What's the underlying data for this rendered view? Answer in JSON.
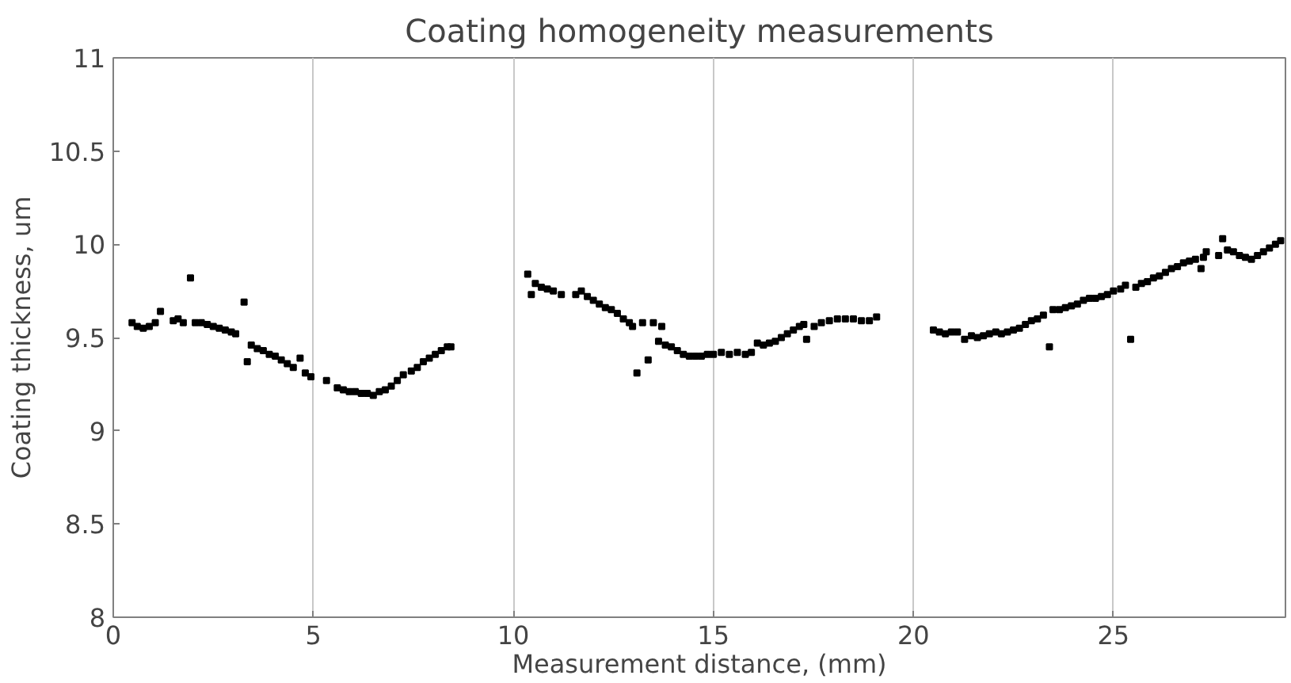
{
  "chart_data": {
    "type": "scatter",
    "title": "Coating homogeneity measurements",
    "xlabel": "Measurement distance, (mm)",
    "ylabel": "Coating thickness, um",
    "xlim": [
      0,
      29.3
    ],
    "ylim": [
      8,
      11
    ],
    "xticks": [
      0,
      5,
      10,
      15,
      20,
      25
    ],
    "yticks": [
      8,
      8.5,
      9,
      9.5,
      10,
      10.5,
      11
    ],
    "grid": "x",
    "marker": "square",
    "series": [
      {
        "color": "#000000",
        "x": [
          0.47,
          0.6,
          0.75,
          0.9,
          1.05,
          1.18,
          1.5,
          1.62,
          1.75,
          1.93,
          2.05,
          2.2,
          2.35,
          2.5,
          2.65,
          2.8,
          2.95,
          3.06,
          3.27,
          3.35,
          3.45,
          3.6,
          3.75,
          3.9,
          4.05,
          4.2,
          4.35,
          4.5,
          4.67,
          4.8,
          4.94,
          5.33,
          5.6,
          5.75,
          5.9,
          6.05,
          6.2,
          6.35,
          6.5,
          6.65,
          6.8,
          6.95,
          7.1,
          7.25,
          7.45,
          7.6,
          7.75,
          7.9,
          8.05,
          8.2,
          8.35,
          8.44,
          10.36,
          10.45,
          10.55,
          10.7,
          10.85,
          11.0,
          11.2,
          11.56,
          11.7,
          11.85,
          12.0,
          12.15,
          12.3,
          12.45,
          12.6,
          12.75,
          12.9,
          12.98,
          13.09,
          13.23,
          13.37,
          13.5,
          13.63,
          13.71,
          13.8,
          13.95,
          14.1,
          14.25,
          14.4,
          14.55,
          14.7,
          14.85,
          15.0,
          15.2,
          15.4,
          15.6,
          15.8,
          15.95,
          16.1,
          16.25,
          16.4,
          16.55,
          16.7,
          16.85,
          17.0,
          17.15,
          17.26,
          17.33,
          17.52,
          17.7,
          17.9,
          18.1,
          18.3,
          18.5,
          18.7,
          18.9,
          19.08,
          20.5,
          20.65,
          20.8,
          20.95,
          21.1,
          21.28,
          21.45,
          21.6,
          21.75,
          21.9,
          22.06,
          22.2,
          22.35,
          22.5,
          22.65,
          22.8,
          22.95,
          23.1,
          23.25,
          23.4,
          23.49,
          23.65,
          23.8,
          23.95,
          24.1,
          24.25,
          24.4,
          24.55,
          24.7,
          24.85,
          25.0,
          25.18,
          25.3,
          25.43,
          25.56,
          25.7,
          25.85,
          26.0,
          26.15,
          26.3,
          26.45,
          26.6,
          26.75,
          26.9,
          27.05,
          27.19,
          27.25,
          27.32,
          27.63,
          27.73,
          27.85,
          28.0,
          28.15,
          28.3,
          28.45,
          28.6,
          28.75,
          28.9,
          29.05,
          29.18
        ],
        "values": [
          9.58,
          9.56,
          9.55,
          9.56,
          9.58,
          9.64,
          9.59,
          9.6,
          9.58,
          9.82,
          9.58,
          9.58,
          9.57,
          9.56,
          9.55,
          9.54,
          9.53,
          9.52,
          9.69,
          9.37,
          9.46,
          9.44,
          9.43,
          9.41,
          9.4,
          9.38,
          9.36,
          9.34,
          9.39,
          9.31,
          9.29,
          9.27,
          9.23,
          9.22,
          9.21,
          9.21,
          9.2,
          9.2,
          9.19,
          9.21,
          9.22,
          9.24,
          9.27,
          9.3,
          9.32,
          9.34,
          9.37,
          9.39,
          9.41,
          9.43,
          9.45,
          9.45,
          9.84,
          9.73,
          9.79,
          9.77,
          9.76,
          9.75,
          9.73,
          9.73,
          9.75,
          9.72,
          9.7,
          9.68,
          9.66,
          9.65,
          9.63,
          9.6,
          9.58,
          9.56,
          9.31,
          9.58,
          9.38,
          9.58,
          9.48,
          9.56,
          9.46,
          9.45,
          9.43,
          9.41,
          9.4,
          9.4,
          9.4,
          9.41,
          9.41,
          9.42,
          9.41,
          9.42,
          9.41,
          9.42,
          9.47,
          9.46,
          9.47,
          9.48,
          9.5,
          9.52,
          9.54,
          9.56,
          9.57,
          9.49,
          9.56,
          9.58,
          9.59,
          9.6,
          9.6,
          9.6,
          9.59,
          9.59,
          9.61,
          9.54,
          9.53,
          9.52,
          9.53,
          9.53,
          9.49,
          9.51,
          9.5,
          9.51,
          9.52,
          9.53,
          9.52,
          9.53,
          9.54,
          9.55,
          9.57,
          9.59,
          9.6,
          9.62,
          9.45,
          9.65,
          9.65,
          9.66,
          9.67,
          9.68,
          9.7,
          9.71,
          9.71,
          9.72,
          9.73,
          9.75,
          9.76,
          9.78,
          9.49,
          9.77,
          9.79,
          9.8,
          9.82,
          9.83,
          9.85,
          9.87,
          9.88,
          9.9,
          9.91,
          9.92,
          9.87,
          9.93,
          9.96,
          9.94,
          10.03,
          9.97,
          9.96,
          9.94,
          9.93,
          9.92,
          9.94,
          9.96,
          9.98,
          10.0,
          10.02
        ]
      }
    ]
  }
}
